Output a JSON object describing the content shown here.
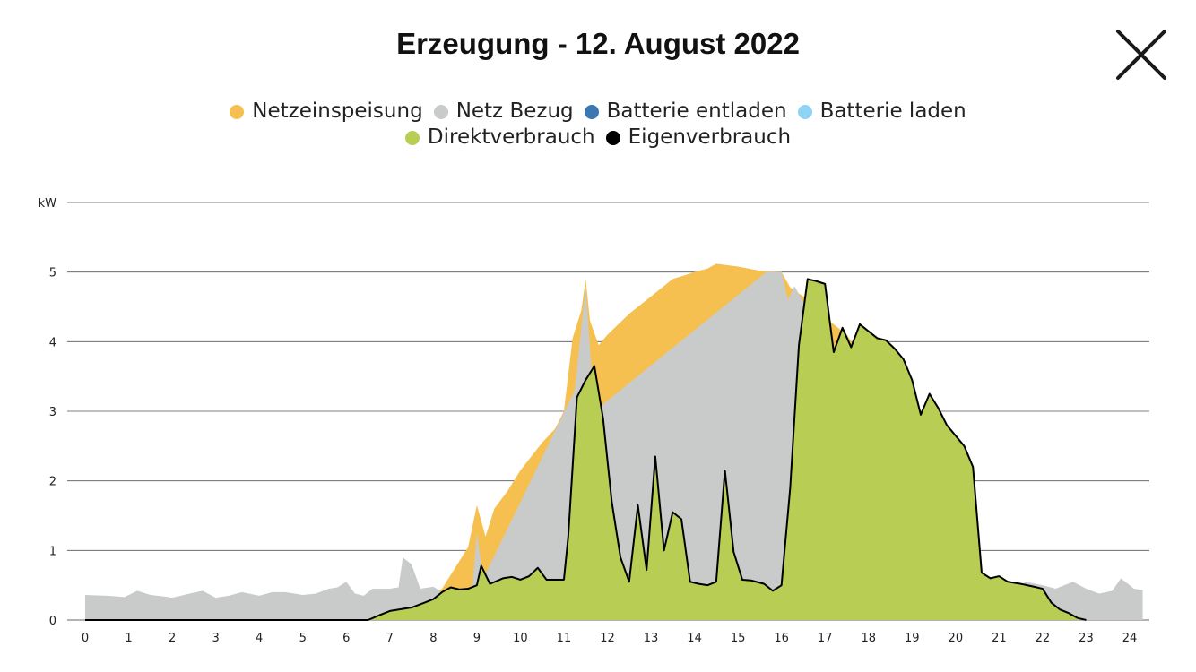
{
  "header": {
    "title": "Erzeugung - 12. August 2022"
  },
  "close_button": {
    "label": "close",
    "icon": "close-icon"
  },
  "legend": [
    {
      "label": "Netzeinspeisung",
      "color": "#F5C04F"
    },
    {
      "label": "Netz Bezug",
      "color": "#C9CBCA"
    },
    {
      "label": "Batterie entladen",
      "color": "#3B77B0"
    },
    {
      "label": "Batterie laden",
      "color": "#8FD3F5"
    },
    {
      "label": "Direktverbrauch",
      "color": "#B8CD53"
    },
    {
      "label": "Eigenverbrauch",
      "color": "#000000"
    }
  ],
  "chart_data": {
    "type": "area",
    "title": "Erzeugung - 12. August 2022",
    "ylabel": "kW",
    "xlim": [
      0,
      24
    ],
    "ylim": [
      0,
      6
    ],
    "x_ticks": [
      "0",
      "1",
      "2",
      "3",
      "4",
      "5",
      "6",
      "7",
      "8",
      "9",
      "10",
      "11",
      "12",
      "13",
      "14",
      "15",
      "16",
      "17",
      "18",
      "19",
      "20",
      "21",
      "22",
      "23",
      "24"
    ],
    "y_ticks": [
      "0",
      "1",
      "2",
      "3",
      "4",
      "5"
    ],
    "y_top_label": "kW",
    "grid": true,
    "legend_position": "top",
    "series": [
      {
        "name": "Netzeinspeisung",
        "color": "#F5C04F",
        "points": [
          [
            6.5,
            0
          ],
          [
            7,
            0.12
          ],
          [
            7.5,
            0.2
          ],
          [
            8,
            0.35
          ],
          [
            8.2,
            0.45
          ],
          [
            8.5,
            0.75
          ],
          [
            8.8,
            1.05
          ],
          [
            9,
            1.65
          ],
          [
            9.2,
            1.2
          ],
          [
            9.4,
            1.6
          ],
          [
            9.7,
            1.85
          ],
          [
            10,
            2.15
          ],
          [
            10.5,
            2.55
          ],
          [
            10.8,
            2.75
          ],
          [
            11,
            3.0
          ],
          [
            11.2,
            4.05
          ],
          [
            11.4,
            4.45
          ],
          [
            11.5,
            4.9
          ],
          [
            11.6,
            4.3
          ],
          [
            11.8,
            3.95
          ],
          [
            12,
            4.1
          ],
          [
            12.5,
            4.4
          ],
          [
            13,
            4.65
          ],
          [
            13.5,
            4.9
          ],
          [
            14,
            5.0
          ],
          [
            14.3,
            5.05
          ],
          [
            14.5,
            5.12
          ],
          [
            15,
            5.08
          ],
          [
            15.5,
            5.02
          ],
          [
            16,
            5.0
          ],
          [
            16.2,
            4.78
          ],
          [
            16.5,
            4.65
          ],
          [
            16.7,
            4.68
          ],
          [
            16.8,
            4.45
          ],
          [
            17,
            4.35
          ],
          [
            17.5,
            4.1
          ],
          [
            18,
            3.65
          ],
          [
            18.5,
            3.0
          ],
          [
            18.8,
            2.55
          ],
          [
            19,
            2.2
          ],
          [
            19.2,
            1.75
          ],
          [
            19.4,
            1.3
          ],
          [
            19.6,
            1.15
          ],
          [
            19.8,
            0.8
          ],
          [
            20,
            0.55
          ],
          [
            20.3,
            0.3
          ],
          [
            20.6,
            0.12
          ],
          [
            20.8,
            0
          ]
        ]
      },
      {
        "name": "Netz Bezug",
        "color": "#C9CBCA",
        "points": [
          [
            0,
            0.36
          ],
          [
            0.5,
            0.35
          ],
          [
            0.9,
            0.33
          ],
          [
            1.2,
            0.42
          ],
          [
            1.5,
            0.36
          ],
          [
            1.8,
            0.34
          ],
          [
            2,
            0.32
          ],
          [
            2.4,
            0.38
          ],
          [
            2.7,
            0.42
          ],
          [
            3,
            0.32
          ],
          [
            3.3,
            0.35
          ],
          [
            3.6,
            0.4
          ],
          [
            4,
            0.35
          ],
          [
            4.3,
            0.4
          ],
          [
            4.6,
            0.4
          ],
          [
            5,
            0.36
          ],
          [
            5.3,
            0.38
          ],
          [
            5.6,
            0.45
          ],
          [
            5.8,
            0.47
          ],
          [
            6,
            0.55
          ],
          [
            6.2,
            0.38
          ],
          [
            6.4,
            0.35
          ],
          [
            6.6,
            0.45
          ],
          [
            7,
            0.45
          ],
          [
            7.2,
            0.47
          ],
          [
            7.3,
            0.9
          ],
          [
            7.5,
            0.8
          ],
          [
            7.7,
            0.45
          ],
          [
            8,
            0.48
          ],
          [
            8.2,
            0.4
          ],
          [
            8.7,
            0.42
          ],
          [
            8.9,
            0.5
          ],
          [
            9,
            1.25
          ],
          [
            9.15,
            0.6
          ],
          [
            11.25,
            3.3
          ],
          [
            11.5,
            4.8
          ],
          [
            11.7,
            3.0
          ],
          [
            15.65,
            5.0
          ],
          [
            16,
            5.0
          ],
          [
            16.15,
            4.6
          ],
          [
            16.3,
            4.8
          ],
          [
            20,
            0.55
          ],
          [
            20.3,
            0.5
          ],
          [
            20.8,
            0.47
          ],
          [
            21,
            0.4
          ],
          [
            21.3,
            0.35
          ],
          [
            21.6,
            0.55
          ],
          [
            22,
            0.5
          ],
          [
            22.3,
            0.45
          ],
          [
            22.7,
            0.55
          ],
          [
            23,
            0.45
          ],
          [
            23.3,
            0.38
          ],
          [
            23.6,
            0.42
          ],
          [
            23.8,
            0.6
          ],
          [
            24.1,
            0.45
          ],
          [
            24.3,
            0.43
          ]
        ]
      },
      {
        "name": "Direktverbrauch",
        "color": "#B8CD53",
        "points": [
          [
            6.5,
            0
          ],
          [
            6.8,
            0.08
          ],
          [
            7,
            0.13
          ],
          [
            7.5,
            0.18
          ],
          [
            7.8,
            0.25
          ],
          [
            8,
            0.3
          ],
          [
            8.2,
            0.4
          ],
          [
            8.4,
            0.47
          ],
          [
            8.6,
            0.44
          ],
          [
            8.8,
            0.45
          ],
          [
            9,
            0.5
          ],
          [
            9.1,
            0.78
          ],
          [
            9.3,
            0.52
          ],
          [
            9.6,
            0.6
          ],
          [
            9.8,
            0.62
          ],
          [
            10,
            0.58
          ],
          [
            10.2,
            0.63
          ],
          [
            10.4,
            0.75
          ],
          [
            10.6,
            0.58
          ],
          [
            10.8,
            0.58
          ],
          [
            11,
            0.58
          ],
          [
            11.1,
            1.2
          ],
          [
            11.3,
            3.2
          ],
          [
            11.5,
            3.45
          ],
          [
            11.7,
            3.65
          ],
          [
            11.9,
            2.9
          ],
          [
            12.1,
            1.7
          ],
          [
            12.3,
            0.9
          ],
          [
            12.5,
            0.55
          ],
          [
            12.7,
            1.65
          ],
          [
            12.9,
            0.72
          ],
          [
            13.1,
            2.35
          ],
          [
            13.3,
            1.0
          ],
          [
            13.5,
            1.55
          ],
          [
            13.7,
            1.45
          ],
          [
            13.9,
            0.55
          ],
          [
            14.1,
            0.52
          ],
          [
            14.3,
            0.5
          ],
          [
            14.5,
            0.55
          ],
          [
            14.7,
            2.15
          ],
          [
            14.9,
            0.98
          ],
          [
            15.1,
            0.58
          ],
          [
            15.3,
            0.57
          ],
          [
            15.6,
            0.52
          ],
          [
            15.8,
            0.42
          ],
          [
            16,
            0.5
          ],
          [
            16.2,
            1.9
          ],
          [
            16.4,
            3.95
          ],
          [
            16.6,
            4.9
          ],
          [
            16.8,
            4.87
          ],
          [
            17,
            4.83
          ],
          [
            17.2,
            3.85
          ],
          [
            17.4,
            4.2
          ],
          [
            17.6,
            3.92
          ],
          [
            17.8,
            4.25
          ],
          [
            18.2,
            4.05
          ],
          [
            18.4,
            4.02
          ],
          [
            18.6,
            3.9
          ],
          [
            18.8,
            3.75
          ],
          [
            19,
            3.45
          ],
          [
            19.2,
            2.95
          ],
          [
            19.4,
            3.25
          ],
          [
            19.6,
            3.05
          ],
          [
            19.8,
            2.8
          ],
          [
            20,
            2.65
          ],
          [
            20.2,
            2.5
          ],
          [
            20.4,
            2.2
          ],
          [
            20.6,
            0.68
          ],
          [
            20.8,
            0.6
          ],
          [
            21,
            0.63
          ],
          [
            21.2,
            0.55
          ],
          [
            21.5,
            0.52
          ],
          [
            21.8,
            0.48
          ],
          [
            22,
            0.45
          ],
          [
            22.2,
            0.25
          ],
          [
            22.4,
            0.15
          ],
          [
            22.6,
            0.1
          ],
          [
            22.8,
            0.03
          ],
          [
            23,
            0
          ]
        ]
      },
      {
        "name": "Eigenverbrauch",
        "color": "#000000",
        "points": [
          [
            0,
            0
          ],
          [
            6.5,
            0
          ],
          [
            6.8,
            0.08
          ],
          [
            7,
            0.13
          ],
          [
            7.5,
            0.18
          ],
          [
            7.8,
            0.25
          ],
          [
            8,
            0.3
          ],
          [
            8.2,
            0.4
          ],
          [
            8.4,
            0.47
          ],
          [
            8.6,
            0.44
          ],
          [
            8.8,
            0.45
          ],
          [
            9,
            0.5
          ],
          [
            9.1,
            0.78
          ],
          [
            9.3,
            0.52
          ],
          [
            9.6,
            0.6
          ],
          [
            9.8,
            0.62
          ],
          [
            10,
            0.58
          ],
          [
            10.2,
            0.63
          ],
          [
            10.4,
            0.75
          ],
          [
            10.6,
            0.58
          ],
          [
            10.8,
            0.58
          ],
          [
            11,
            0.58
          ],
          [
            11.1,
            1.2
          ],
          [
            11.3,
            3.2
          ],
          [
            11.5,
            3.45
          ],
          [
            11.7,
            3.65
          ],
          [
            11.9,
            2.9
          ],
          [
            12.1,
            1.7
          ],
          [
            12.3,
            0.9
          ],
          [
            12.5,
            0.55
          ],
          [
            12.7,
            1.65
          ],
          [
            12.9,
            0.72
          ],
          [
            13.1,
            2.35
          ],
          [
            13.3,
            1.0
          ],
          [
            13.5,
            1.55
          ],
          [
            13.7,
            1.45
          ],
          [
            13.9,
            0.55
          ],
          [
            14.1,
            0.52
          ],
          [
            14.3,
            0.5
          ],
          [
            14.5,
            0.55
          ],
          [
            14.7,
            2.15
          ],
          [
            14.9,
            0.98
          ],
          [
            15.1,
            0.58
          ],
          [
            15.3,
            0.57
          ],
          [
            15.6,
            0.52
          ],
          [
            15.8,
            0.42
          ],
          [
            16,
            0.5
          ],
          [
            16.2,
            1.9
          ],
          [
            16.4,
            3.95
          ],
          [
            16.6,
            4.9
          ],
          [
            16.8,
            4.87
          ],
          [
            17,
            4.83
          ],
          [
            17.2,
            3.85
          ],
          [
            17.4,
            4.2
          ],
          [
            17.6,
            3.92
          ],
          [
            17.8,
            4.25
          ],
          [
            18.2,
            4.05
          ],
          [
            18.4,
            4.02
          ],
          [
            18.6,
            3.9
          ],
          [
            18.8,
            3.75
          ],
          [
            19,
            3.45
          ],
          [
            19.2,
            2.95
          ],
          [
            19.4,
            3.25
          ],
          [
            19.6,
            3.05
          ],
          [
            19.8,
            2.8
          ],
          [
            20,
            2.65
          ],
          [
            20.2,
            2.5
          ],
          [
            20.4,
            2.2
          ],
          [
            20.6,
            0.68
          ],
          [
            20.8,
            0.6
          ],
          [
            21,
            0.63
          ],
          [
            21.2,
            0.55
          ],
          [
            21.5,
            0.52
          ],
          [
            21.8,
            0.48
          ],
          [
            22,
            0.45
          ],
          [
            22.2,
            0.25
          ],
          [
            22.4,
            0.15
          ],
          [
            22.6,
            0.1
          ],
          [
            22.8,
            0.03
          ],
          [
            23,
            0
          ]
        ]
      }
    ]
  }
}
